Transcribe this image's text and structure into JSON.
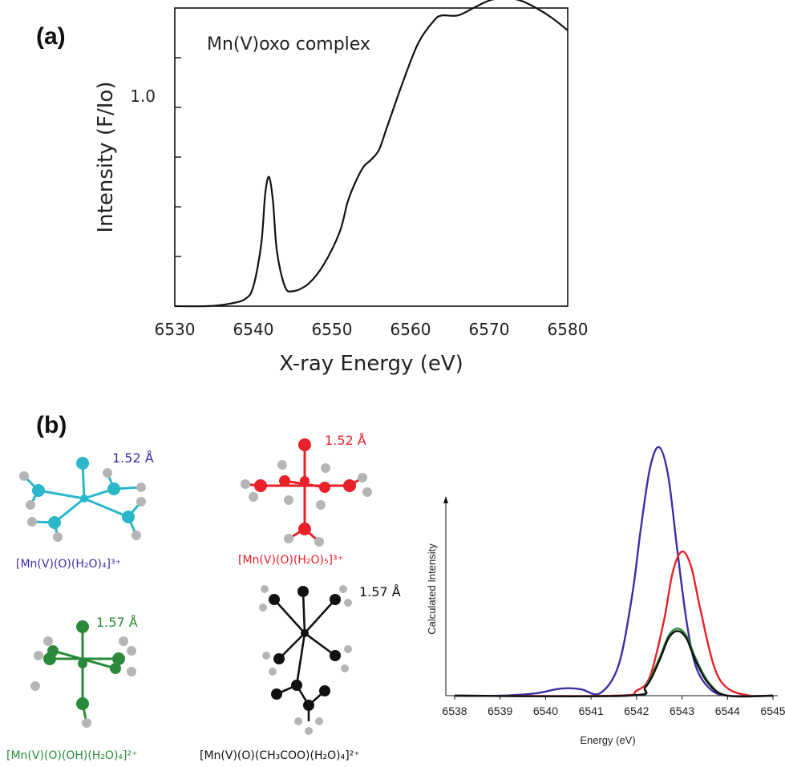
{
  "panel_a_label": "(a)",
  "panel_b_label": "(b)",
  "colors": {
    "blue": "#3b2fa6",
    "red": "#e8202a",
    "green": "#2a8a3a",
    "black": "#111111",
    "cyan": "#2ab7c9",
    "gray": "#b5b5b5"
  },
  "molecules": [
    {
      "distance": "1.52 Å",
      "formula": "[Mn(V)(O)(H₂O)₄]³⁺",
      "color": "#3b2fa6",
      "atom_color": "cyan"
    },
    {
      "distance": "1.52 Å",
      "formula": "[Mn(V)(O)(H₂O)₅]³⁺",
      "color": "#e8202a",
      "atom_color": "red"
    },
    {
      "distance": "1.57 Å",
      "formula": "[Mn(V)(O)(OH)(H₂O)₄]²⁺",
      "color": "#2a8a3a",
      "atom_color": "green"
    },
    {
      "distance": "1.57 Å",
      "formula": "[Mn(V)(O)(CH₃COO)(H₂O)₄]²⁺",
      "color": "#111111",
      "atom_color": "black"
    }
  ],
  "chart_data": [
    {
      "type": "line",
      "annotation": "Mn(V)oxo complex",
      "xlabel": "X-ray Energy (eV)",
      "ylabel": "Intensity (F/Io)",
      "xlim": [
        6530,
        6580
      ],
      "x_ticks": [
        "6530",
        "6540",
        "6550",
        "6560",
        "6570",
        "6580"
      ],
      "y_ticks_labeled": [
        "1.0"
      ],
      "ylim": [
        0,
        1.2
      ],
      "grid": false,
      "series": [
        {
          "x": [
            6530,
            6534,
            6537,
            6539,
            6540,
            6541,
            6541.5,
            6542,
            6542.5,
            6543,
            6544,
            6545,
            6547,
            6549,
            6551,
            6552,
            6553,
            6554,
            6555,
            6556,
            6557,
            6559,
            6561,
            6563,
            6564,
            6566,
            6568,
            6570,
            6572,
            6574,
            6576,
            6578,
            6580
          ],
          "y": [
            0.0,
            0.0,
            0.01,
            0.03,
            0.08,
            0.25,
            0.45,
            0.52,
            0.42,
            0.22,
            0.08,
            0.06,
            0.09,
            0.17,
            0.3,
            0.42,
            0.5,
            0.56,
            0.59,
            0.63,
            0.72,
            0.9,
            1.06,
            1.15,
            1.17,
            1.17,
            1.2,
            1.23,
            1.24,
            1.23,
            1.2,
            1.16,
            1.11
          ]
        }
      ]
    },
    {
      "type": "line",
      "xlabel": "Energy (eV)",
      "ylabel": "Calculated Intensity",
      "xlim": [
        6538,
        6545
      ],
      "x_ticks": [
        "6538",
        "6539",
        "6540",
        "6541",
        "6542",
        "6543",
        "6544",
        "6545"
      ],
      "series": [
        {
          "color": "#3b2fa6",
          "x": [
            6538,
            6539,
            6539.8,
            6540.2,
            6540.5,
            6540.8,
            6541.2,
            6541.6,
            6541.9,
            6542.1,
            6542.3,
            6542.5,
            6542.7,
            6542.9,
            6543.1,
            6543.3,
            6543.6,
            6544,
            6545
          ],
          "y": [
            0.0,
            0.0,
            0.01,
            0.025,
            0.03,
            0.025,
            0.01,
            0.12,
            0.4,
            0.68,
            0.92,
            1.0,
            0.88,
            0.58,
            0.3,
            0.12,
            0.03,
            0.0,
            0.0
          ]
        },
        {
          "color": "#e8202a",
          "x": [
            6538,
            6541.5,
            6542,
            6542.3,
            6542.6,
            6542.8,
            6543,
            6543.2,
            6543.4,
            6543.7,
            6544,
            6544.5,
            6545
          ],
          "y": [
            0.0,
            0.0,
            0.02,
            0.08,
            0.3,
            0.5,
            0.58,
            0.52,
            0.35,
            0.12,
            0.03,
            0.0,
            0.0
          ]
        },
        {
          "color": "#2a8a3a",
          "x": [
            6538,
            6541.8,
            6542.2,
            6542.5,
            6542.7,
            6542.9,
            6543.1,
            6543.3,
            6543.6,
            6544,
            6545
          ],
          "y": [
            0.0,
            0.0,
            0.04,
            0.15,
            0.24,
            0.27,
            0.24,
            0.15,
            0.05,
            0.0,
            0.0
          ]
        },
        {
          "color": "#111111",
          "x": [
            6538,
            6541.8,
            6542.2,
            6542.5,
            6542.7,
            6542.9,
            6543.1,
            6543.3,
            6543.6,
            6544,
            6545
          ],
          "y": [
            0.0,
            0.0,
            0.035,
            0.14,
            0.23,
            0.26,
            0.23,
            0.14,
            0.045,
            0.0,
            0.0
          ]
        }
      ]
    }
  ]
}
